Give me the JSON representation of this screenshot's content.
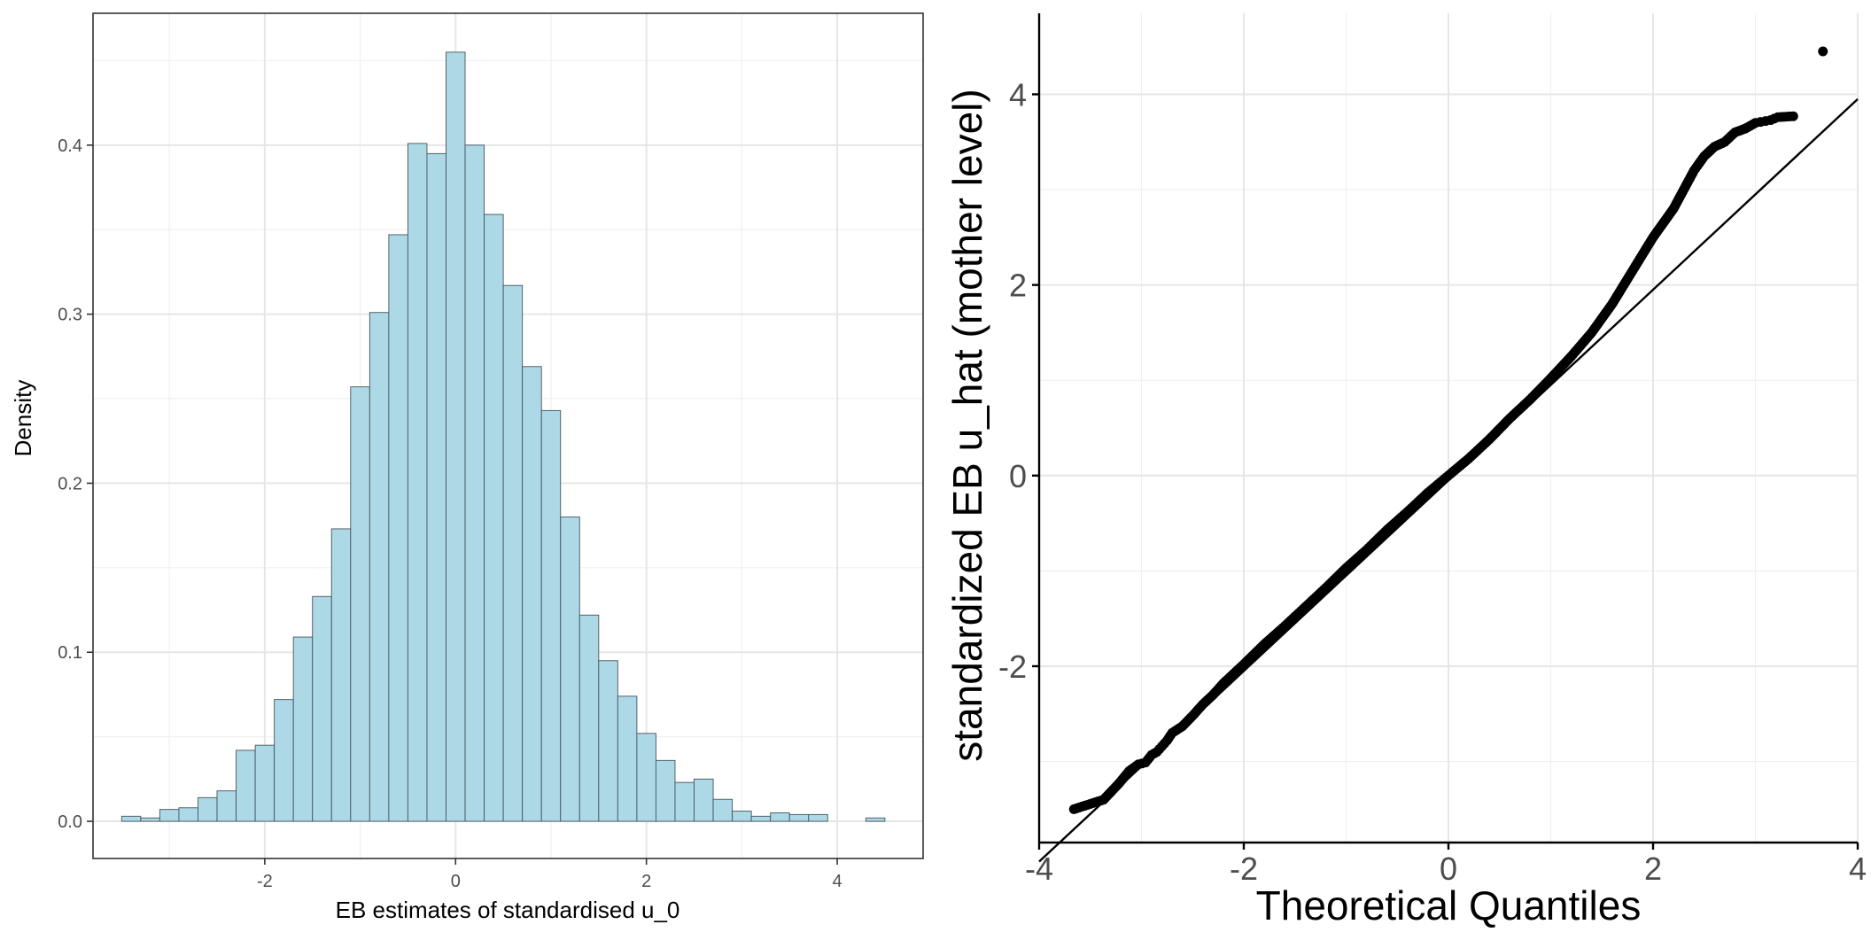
{
  "chart_data": [
    {
      "type": "bar",
      "subtype": "histogram",
      "title": "",
      "xlabel": "EB estimates of standardised u_0",
      "ylabel": "Density",
      "xlim": [
        -3.8,
        4.9
      ],
      "ylim": [
        -0.022,
        0.478
      ],
      "xticks": [
        -2,
        0,
        2,
        4
      ],
      "xtick_labels": [
        "-2",
        "0",
        "2",
        "4"
      ],
      "yticks": [
        0.0,
        0.1,
        0.2,
        0.3,
        0.4
      ],
      "ytick_labels": [
        "0.0",
        "0.1",
        "0.2",
        "0.3",
        "0.4"
      ],
      "bin_width": 0.2,
      "bin_start": -3.5,
      "values": [
        0.003,
        0.002,
        0.007,
        0.008,
        0.014,
        0.018,
        0.042,
        0.045,
        0.072,
        0.109,
        0.133,
        0.173,
        0.257,
        0.301,
        0.347,
        0.401,
        0.395,
        0.455,
        0.4,
        0.359,
        0.317,
        0.269,
        0.243,
        0.18,
        0.122,
        0.095,
        0.074,
        0.052,
        0.036,
        0.023,
        0.025,
        0.013,
        0.006,
        0.003,
        0.005,
        0.004,
        0.004,
        0.0,
        0.0,
        0.002
      ],
      "bar_color": "#ADD8E6",
      "grid": true
    },
    {
      "type": "scatter",
      "subtype": "qq",
      "title": "",
      "xlabel": "Theoretical Quantiles",
      "ylabel": "standardized EB u_hat (mother level)",
      "xlim": [
        -4.0,
        4.0
      ],
      "ylim": [
        -3.85,
        4.85
      ],
      "xticks": [
        -4,
        -2,
        0,
        2,
        4
      ],
      "xtick_labels": [
        "-4",
        "-2",
        "0",
        "2",
        "4"
      ],
      "yticks": [
        -2,
        0,
        2,
        4
      ],
      "ytick_labels": [
        "-2",
        "0",
        "2",
        "4"
      ],
      "reference_line": {
        "slope": 1.0,
        "intercept": -0.05
      },
      "points": {
        "x": [
          -3.66,
          -3.37,
          -3.22,
          -3.12,
          -3.03,
          -2.96,
          -2.9,
          -2.85,
          -2.8,
          -2.75,
          -2.7,
          -2.6,
          -2.5,
          -2.4,
          -2.3,
          -2.2,
          -2.0,
          -1.8,
          -1.6,
          -1.4,
          -1.2,
          -1.0,
          -0.8,
          -0.6,
          -0.4,
          -0.2,
          0.0,
          0.2,
          0.4,
          0.6,
          0.8,
          1.0,
          1.2,
          1.4,
          1.6,
          1.8,
          2.0,
          2.2,
          2.4,
          2.5,
          2.6,
          2.7,
          2.8,
          2.85,
          2.9,
          2.95,
          3.0,
          3.05,
          3.1,
          3.15,
          3.22,
          3.37,
          3.66
        ],
        "y": [
          -3.5,
          -3.4,
          -3.23,
          -3.1,
          -3.03,
          -3.01,
          -2.93,
          -2.9,
          -2.84,
          -2.78,
          -2.7,
          -2.63,
          -2.52,
          -2.4,
          -2.3,
          -2.18,
          -1.98,
          -1.77,
          -1.58,
          -1.38,
          -1.18,
          -0.97,
          -0.78,
          -0.57,
          -0.38,
          -0.18,
          0.0,
          0.18,
          0.38,
          0.6,
          0.8,
          1.02,
          1.25,
          1.5,
          1.8,
          2.15,
          2.5,
          2.8,
          3.2,
          3.35,
          3.45,
          3.5,
          3.6,
          3.62,
          3.64,
          3.67,
          3.7,
          3.71,
          3.72,
          3.73,
          3.76,
          3.77,
          4.45
        ]
      },
      "grid": true
    }
  ]
}
